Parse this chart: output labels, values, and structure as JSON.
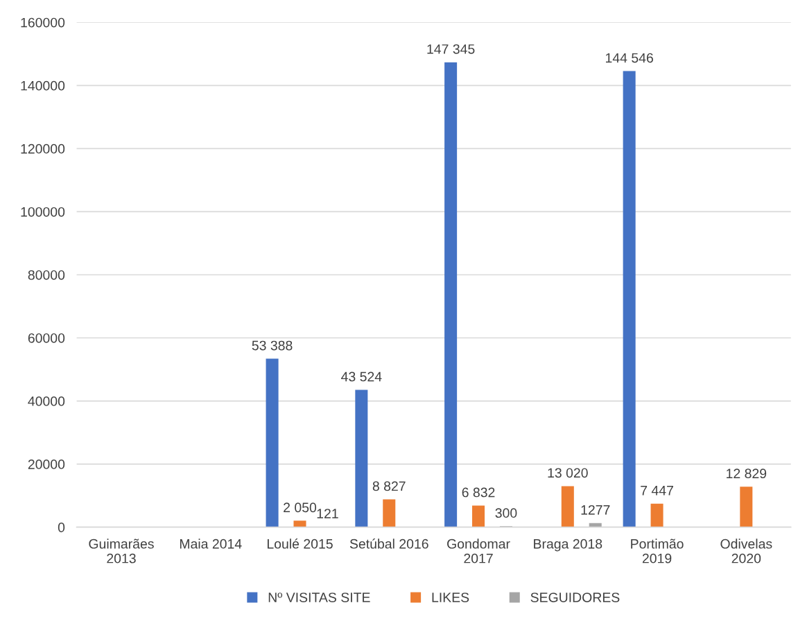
{
  "chart_data": {
    "type": "bar",
    "categories": [
      "Guimarães 2013",
      "Maia 2014",
      "Loulé 2015",
      "Setúbal 2016",
      "Gondomar 2017",
      "Braga 2018",
      "Portimão 2019",
      "Odivelas 2020"
    ],
    "series": [
      {
        "name": "Nº VISITAS SITE",
        "color": "#4472c4",
        "values": [
          null,
          null,
          53388,
          43524,
          147345,
          null,
          144546,
          null
        ],
        "value_labels": [
          null,
          null,
          "53 388",
          "43 524",
          "147 345",
          null,
          "144 546",
          null
        ]
      },
      {
        "name": "LIKES",
        "color": "#ed7d31",
        "values": [
          null,
          null,
          2050,
          8827,
          6832,
          13020,
          7447,
          12829
        ],
        "value_labels": [
          null,
          null,
          "2 050",
          "8 827",
          "6 832",
          "13 020",
          "7 447",
          "12 829"
        ]
      },
      {
        "name": "SEGUIDORES",
        "color": "#a5a5a5",
        "values": [
          null,
          null,
          121,
          null,
          300,
          1277,
          null,
          null
        ],
        "value_labels": [
          null,
          null,
          "121",
          null,
          "300",
          "1277",
          null,
          null
        ]
      }
    ],
    "ylim": [
      0,
      160000
    ],
    "yticks": [
      0,
      20000,
      40000,
      60000,
      80000,
      100000,
      120000,
      140000,
      160000
    ],
    "grid": "y",
    "legend": "bottom"
  }
}
